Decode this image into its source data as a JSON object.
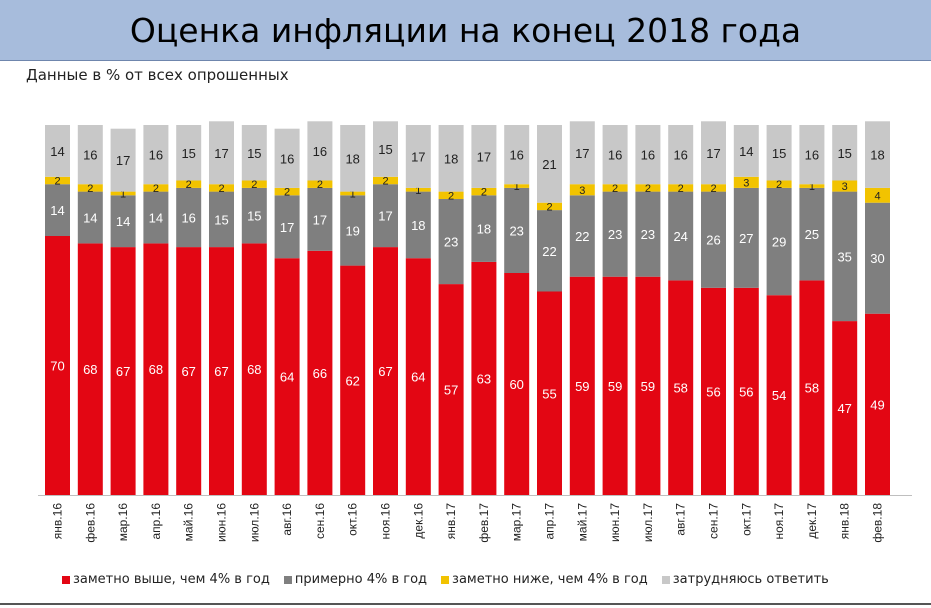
{
  "header": {
    "title": "Оценка инфляции на конец 2018 года"
  },
  "subtitle": "Данные в % от всех опрошенных",
  "colors": {
    "above": "#e30613",
    "about": "#7f7f7f",
    "below": "#f2c300",
    "unsure": "#c8c8c8"
  },
  "legend": [
    {
      "key": "above",
      "label": "заметно выше, чем 4% в год"
    },
    {
      "key": "about",
      "label": "примерно 4% в год"
    },
    {
      "key": "below",
      "label": "заметно ниже, чем 4% в год"
    },
    {
      "key": "unsure",
      "label": "затрудняюсь ответить"
    }
  ],
  "chart_data": {
    "type": "bar",
    "stacked": true,
    "title": "Оценка инфляции на конец 2018 года",
    "subtitle": "Данные в % от всех опрошенных",
    "categories": [
      "янв.16",
      "фев.16",
      "мар.16",
      "апр.16",
      "май.16",
      "июн.16",
      "июл.16",
      "авг.16",
      "сен.16",
      "окт.16",
      "ноя.16",
      "дек.16",
      "янв.17",
      "фев.17",
      "мар.17",
      "апр.17",
      "май.17",
      "июн.17",
      "июл.17",
      "авг.17",
      "сен.17",
      "окт.17",
      "ноя.17",
      "дек.17",
      "янв.18",
      "фев.18"
    ],
    "series": [
      {
        "name": "заметно выше, чем 4% в год",
        "values": [
          70,
          68,
          67,
          68,
          67,
          67,
          68,
          64,
          66,
          62,
          67,
          64,
          57,
          63,
          60,
          55,
          59,
          59,
          59,
          58,
          56,
          56,
          54,
          58,
          47,
          49
        ]
      },
      {
        "name": "примерно 4% в год",
        "values": [
          14,
          14,
          14,
          14,
          16,
          15,
          15,
          17,
          17,
          19,
          17,
          18,
          23,
          18,
          23,
          22,
          22,
          23,
          23,
          24,
          26,
          27,
          29,
          25,
          35,
          30
        ]
      },
      {
        "name": "заметно ниже, чем 4% в год",
        "values": [
          2,
          2,
          1,
          2,
          2,
          2,
          2,
          2,
          2,
          1,
          2,
          1,
          2,
          2,
          1,
          2,
          3,
          2,
          2,
          2,
          2,
          3,
          2,
          1,
          3,
          4
        ]
      },
      {
        "name": "затрудняюсь ответить",
        "values": [
          14,
          16,
          17,
          16,
          15,
          17,
          15,
          16,
          16,
          18,
          15,
          17,
          18,
          17,
          16,
          21,
          17,
          16,
          16,
          16,
          17,
          14,
          15,
          16,
          15,
          18
        ]
      }
    ],
    "legend_position": "bottom",
    "grid": false
  }
}
